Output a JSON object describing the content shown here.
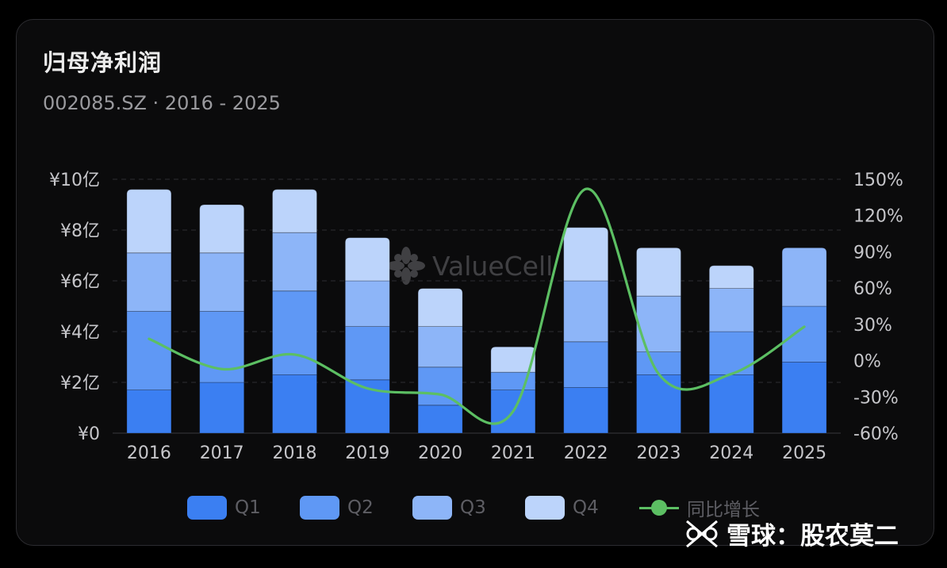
{
  "title": "归母净利润",
  "subtitle": "002085.SZ  · 2016 - 2025",
  "watermark": "ValueCell",
  "footer": "雪球：股农莫二",
  "colors": {
    "q1": "#3b7ff2",
    "q2": "#5f98f5",
    "q3": "#8db5f8",
    "q4": "#bcd4fb",
    "growth": "#5cbf63"
  },
  "legend": [
    {
      "key": "q1",
      "label": "Q1"
    },
    {
      "key": "q2",
      "label": "Q2"
    },
    {
      "key": "q3",
      "label": "Q3"
    },
    {
      "key": "q4",
      "label": "Q4"
    },
    {
      "key": "growth",
      "label": "同比增长"
    }
  ],
  "chart_data": {
    "type": "bar",
    "stacked": true,
    "categories": [
      "2016",
      "2017",
      "2018",
      "2019",
      "2020",
      "2021",
      "2022",
      "2023",
      "2024",
      "2025"
    ],
    "series": [
      {
        "name": "Q1",
        "values": [
          1.7,
          2.0,
          2.3,
          2.1,
          1.1,
          1.7,
          1.8,
          2.3,
          2.3,
          2.8
        ]
      },
      {
        "name": "Q2",
        "values": [
          3.1,
          2.8,
          3.3,
          2.1,
          1.5,
          0.7,
          1.8,
          0.9,
          1.7,
          2.2
        ]
      },
      {
        "name": "Q3",
        "values": [
          2.3,
          2.3,
          2.3,
          1.8,
          1.6,
          0.0,
          2.4,
          2.2,
          1.7,
          2.3
        ]
      },
      {
        "name": "Q4",
        "values": [
          2.5,
          1.9,
          1.7,
          1.7,
          1.5,
          1.0,
          2.1,
          1.9,
          0.9,
          0.0
        ]
      }
    ],
    "line_series": {
      "name": "同比增长",
      "axis": "right",
      "values": [
        18,
        -7,
        5,
        -23,
        -28,
        -42,
        142,
        -11,
        -11,
        28
      ]
    },
    "y_left": {
      "ticks": [
        "¥0",
        "¥2亿",
        "¥4亿",
        "¥6亿",
        "¥8亿",
        "¥10亿"
      ],
      "min": 0,
      "max": 10
    },
    "y_right": {
      "ticks": [
        "-60%",
        "-30%",
        "0%",
        "30%",
        "60%",
        "90%",
        "120%",
        "150%"
      ],
      "min": -60,
      "max": 150
    },
    "grid": true,
    "legend_position": "bottom"
  }
}
